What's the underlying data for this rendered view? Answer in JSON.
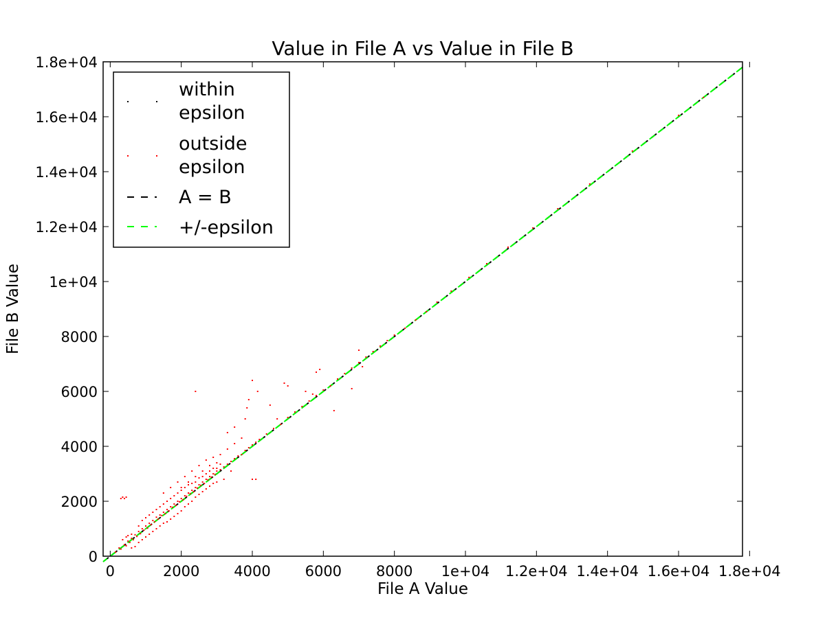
{
  "chart_data": {
    "type": "scatter",
    "title": "Value in File A vs Value in File B",
    "xlabel": "File A Value",
    "ylabel": "File B Value",
    "xlim": [
      -200,
      17800
    ],
    "ylim": [
      0,
      18000
    ],
    "x_ticks": [
      {
        "value": 0,
        "label": "0"
      },
      {
        "value": 2000,
        "label": "2000"
      },
      {
        "value": 4000,
        "label": "4000"
      },
      {
        "value": 6000,
        "label": "6000"
      },
      {
        "value": 8000,
        "label": "8000"
      },
      {
        "value": 10000,
        "label": "1e+04"
      },
      {
        "value": 12000,
        "label": "1.2e+04"
      },
      {
        "value": 14000,
        "label": "1.4e+04"
      },
      {
        "value": 16000,
        "label": "1.6e+04"
      },
      {
        "value": 18000,
        "label": "1.8e+04"
      }
    ],
    "y_ticks": [
      {
        "value": 0,
        "label": "0"
      },
      {
        "value": 2000,
        "label": "2000"
      },
      {
        "value": 4000,
        "label": "4000"
      },
      {
        "value": 6000,
        "label": "6000"
      },
      {
        "value": 8000,
        "label": "8000"
      },
      {
        "value": 10000,
        "label": "1e+04"
      },
      {
        "value": 12000,
        "label": "1.2e+04"
      },
      {
        "value": 14000,
        "label": "1.4e+04"
      },
      {
        "value": 16000,
        "label": "1.6e+04"
      },
      {
        "value": 18000,
        "label": "1.8e+04"
      }
    ],
    "grid": false,
    "legend_position": "top-left",
    "legend": [
      {
        "label_lines": [
          "within",
          "epsilon"
        ],
        "marker": "point",
        "color": "#000000"
      },
      {
        "label_lines": [
          "outside",
          "epsilon"
        ],
        "marker": "point",
        "color": "#ff0000"
      },
      {
        "label_lines": [
          "A = B"
        ],
        "marker": "dashed-line",
        "color": "#000000"
      },
      {
        "label_lines": [
          "+/-epsilon"
        ],
        "marker": "dashed-line",
        "color": "#00ff00"
      }
    ],
    "series": [
      {
        "name": "outside epsilon",
        "color": "#ff0000",
        "points": [
          [
            150,
            150
          ],
          [
            250,
            300
          ],
          [
            300,
            260
          ],
          [
            400,
            420
          ],
          [
            450,
            380
          ],
          [
            500,
            550
          ],
          [
            550,
            500
          ],
          [
            600,
            650
          ],
          [
            650,
            600
          ],
          [
            700,
            780
          ],
          [
            750,
            720
          ],
          [
            800,
            900
          ],
          [
            850,
            820
          ],
          [
            900,
            1000
          ],
          [
            950,
            950
          ],
          [
            1000,
            1100
          ],
          [
            1050,
            1020
          ],
          [
            1100,
            1200
          ],
          [
            1150,
            1150
          ],
          [
            1200,
            1300
          ],
          [
            1250,
            1250
          ],
          [
            1300,
            1420
          ],
          [
            1350,
            1350
          ],
          [
            1400,
            1500
          ],
          [
            1450,
            1480
          ],
          [
            1500,
            1600
          ],
          [
            1550,
            1550
          ],
          [
            1600,
            1700
          ],
          [
            1650,
            1650
          ],
          [
            1700,
            1800
          ],
          [
            1750,
            1780
          ],
          [
            1800,
            1900
          ],
          [
            1850,
            1850
          ],
          [
            1900,
            2000
          ],
          [
            1950,
            1980
          ],
          [
            2000,
            2100
          ],
          [
            2050,
            2050
          ],
          [
            2100,
            2200
          ],
          [
            2150,
            2180
          ],
          [
            2200,
            2300
          ],
          [
            2250,
            2280
          ],
          [
            2300,
            2400
          ],
          [
            2350,
            2350
          ],
          [
            2400,
            2500
          ],
          [
            2450,
            2480
          ],
          [
            2500,
            2600
          ],
          [
            2550,
            2580
          ],
          [
            2600,
            2700
          ],
          [
            2650,
            2650
          ],
          [
            2700,
            2800
          ],
          [
            2750,
            2780
          ],
          [
            2800,
            2900
          ],
          [
            2850,
            2880
          ],
          [
            2900,
            3000
          ],
          [
            2950,
            2980
          ],
          [
            3000,
            3100
          ],
          [
            3100,
            3150
          ],
          [
            3200,
            3250
          ],
          [
            3300,
            3350
          ],
          [
            3400,
            3450
          ],
          [
            3500,
            3550
          ],
          [
            3600,
            3650
          ],
          [
            3700,
            3700
          ],
          [
            3800,
            3850
          ],
          [
            3900,
            3950
          ],
          [
            4000,
            4050
          ],
          [
            4100,
            4150
          ],
          [
            4200,
            4250
          ],
          [
            4400,
            4450
          ],
          [
            4600,
            4650
          ],
          [
            4800,
            4800
          ],
          [
            5000,
            5050
          ],
          [
            5200,
            5250
          ],
          [
            5400,
            5450
          ],
          [
            5600,
            5650
          ],
          [
            5800,
            5850
          ],
          [
            6000,
            6050
          ],
          [
            6200,
            6200
          ],
          [
            6400,
            6450
          ],
          [
            6600,
            6650
          ],
          [
            6800,
            6850
          ],
          [
            7000,
            7050
          ],
          [
            7200,
            7250
          ],
          [
            7400,
            7450
          ],
          [
            7600,
            7650
          ],
          [
            7800,
            7850
          ],
          [
            8000,
            8050
          ],
          [
            8300,
            8300
          ],
          [
            8600,
            8600
          ],
          [
            8900,
            8900
          ],
          [
            9200,
            9250
          ],
          [
            9600,
            9650
          ],
          [
            10100,
            10150
          ],
          [
            10600,
            10650
          ],
          [
            11200,
            11250
          ],
          [
            11900,
            11950
          ],
          [
            12600,
            12650
          ],
          [
            13500,
            13550
          ],
          [
            14700,
            14750
          ],
          [
            16000,
            16050
          ],
          [
            16700,
            16700
          ],
          [
            600,
            300
          ],
          [
            700,
            350
          ],
          [
            800,
            500
          ],
          [
            900,
            600
          ],
          [
            1000,
            700
          ],
          [
            1100,
            800
          ],
          [
            1200,
            900
          ],
          [
            1300,
            1000
          ],
          [
            1400,
            1100
          ],
          [
            1500,
            1200
          ],
          [
            1600,
            1250
          ],
          [
            1700,
            1350
          ],
          [
            1800,
            1450
          ],
          [
            1900,
            1550
          ],
          [
            2000,
            1650
          ],
          [
            2100,
            1800
          ],
          [
            2200,
            1900
          ],
          [
            2300,
            2000
          ],
          [
            2400,
            2150
          ],
          [
            2500,
            2250
          ],
          [
            2600,
            2350
          ],
          [
            2700,
            2450
          ],
          [
            2800,
            2550
          ],
          [
            2900,
            2650
          ],
          [
            3000,
            2700
          ],
          [
            3200,
            2800
          ],
          [
            3400,
            3100
          ],
          [
            4000,
            2800
          ],
          [
            4100,
            2800
          ],
          [
            300,
            2100
          ],
          [
            350,
            2150
          ],
          [
            400,
            2100
          ],
          [
            450,
            2150
          ],
          [
            2400,
            6000
          ],
          [
            4000,
            6400
          ],
          [
            4150,
            6000
          ],
          [
            3800,
            5000
          ],
          [
            3850,
            5400
          ],
          [
            3900,
            5700
          ],
          [
            4500,
            5500
          ],
          [
            4700,
            5000
          ],
          [
            4900,
            6300
          ],
          [
            5000,
            6200
          ],
          [
            5500,
            6000
          ],
          [
            5700,
            5900
          ],
          [
            5800,
            6700
          ],
          [
            5900,
            6800
          ],
          [
            6300,
            5300
          ],
          [
            6800,
            6100
          ],
          [
            7000,
            7500
          ],
          [
            7100,
            6900
          ],
          [
            1500,
            2300
          ],
          [
            1700,
            2500
          ],
          [
            1900,
            2700
          ],
          [
            2100,
            2900
          ],
          [
            2300,
            3100
          ],
          [
            2500,
            3300
          ],
          [
            2700,
            3500
          ],
          [
            2900,
            3600
          ],
          [
            3100,
            3700
          ],
          [
            3300,
            3900
          ],
          [
            3500,
            4100
          ],
          [
            3700,
            4300
          ],
          [
            3300,
            4500
          ],
          [
            3500,
            4700
          ],
          [
            1200,
            1600
          ],
          [
            1400,
            1800
          ],
          [
            1600,
            2000
          ],
          [
            1800,
            2200
          ],
          [
            2000,
            2500
          ],
          [
            2200,
            2700
          ],
          [
            2400,
            2900
          ],
          [
            2600,
            3100
          ],
          [
            2800,
            3300
          ],
          [
            3000,
            3400
          ],
          [
            800,
            1100
          ],
          [
            900,
            1300
          ],
          [
            1000,
            1400
          ],
          [
            1100,
            1500
          ],
          [
            600,
            800
          ],
          [
            500,
            750
          ],
          [
            350,
            600
          ],
          [
            450,
            700
          ],
          [
            2000,
            2400
          ],
          [
            2200,
            2600
          ],
          [
            2400,
            2700
          ],
          [
            2600,
            2900
          ],
          [
            2800,
            3100
          ],
          [
            3000,
            3200
          ],
          [
            1300,
            1700
          ],
          [
            1500,
            1900
          ],
          [
            1700,
            2100
          ],
          [
            1900,
            2300
          ],
          [
            2100,
            2500
          ],
          [
            2300,
            2650
          ],
          [
            2500,
            2850
          ],
          [
            2700,
            3000
          ],
          [
            2900,
            3200
          ],
          [
            3100,
            3350
          ]
        ]
      }
    ],
    "reference_lines": [
      {
        "name": "A = B",
        "color": "#000000",
        "style": "dashed",
        "from": [
          -200,
          -200
        ],
        "to": [
          17800,
          17800
        ]
      },
      {
        "name": "+/-epsilon",
        "color": "#00ff00",
        "style": "dashed",
        "from": [
          -200,
          -200
        ],
        "to": [
          17800,
          17800
        ]
      }
    ]
  }
}
